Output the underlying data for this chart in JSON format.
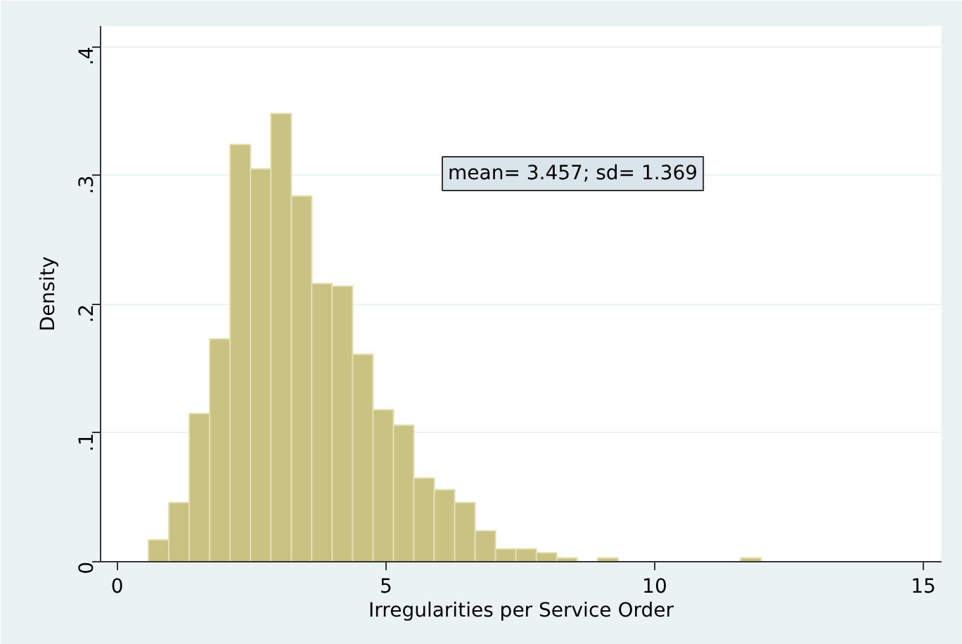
{
  "chart_data": {
    "type": "histogram",
    "xlabel": "Irregularities per Service Order",
    "ylabel": "Density",
    "bins": [
      0.58,
      0.96,
      1.34,
      1.72,
      2.1,
      2.48,
      2.86,
      3.24,
      3.62,
      4.0,
      4.38,
      4.76,
      5.14,
      5.52,
      5.9,
      6.28,
      6.66,
      7.04,
      7.42,
      7.8,
      8.18,
      8.56,
      8.94,
      9.32,
      9.7,
      10.08,
      10.46,
      10.84,
      11.22,
      11.6,
      11.98
    ],
    "values": [
      0.017,
      0.046,
      0.115,
      0.173,
      0.324,
      0.305,
      0.348,
      0.284,
      0.216,
      0.214,
      0.161,
      0.118,
      0.106,
      0.065,
      0.056,
      0.046,
      0.024,
      0.01,
      0.01,
      0.007,
      0.003,
      0,
      0.003,
      0,
      0,
      0,
      0,
      0,
      0,
      0.003
    ],
    "color": "#c9c283",
    "xlim": [
      -0.31,
      15.34
    ],
    "xticks": [
      0,
      5,
      10,
      15
    ],
    "ylim": [
      0,
      0.416
    ],
    "yticks": [
      0,
      {
        "value": 0.1,
        "label": ".1"
      },
      {
        "value": 0.2,
        "label": ".2"
      },
      {
        "value": 0.3,
        "label": ".3"
      },
      {
        "value": 0.4,
        "label": ".4"
      }
    ],
    "grid": "y",
    "annotations": [
      "mean= 3.457; sd= 1.369"
    ]
  }
}
